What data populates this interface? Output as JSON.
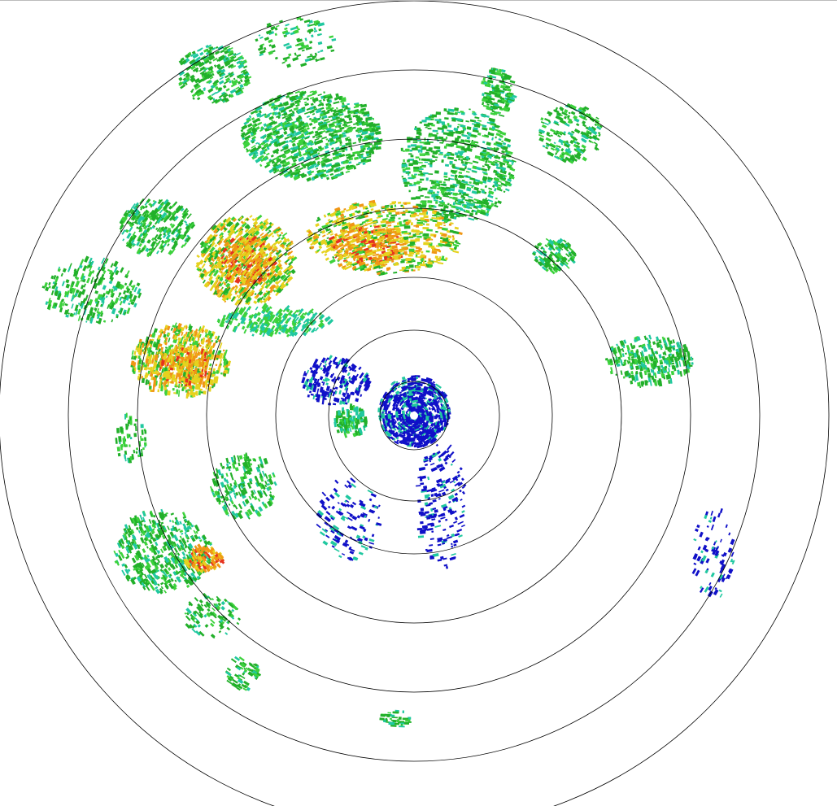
{
  "radar": {
    "range_ring_count": 7,
    "reflectivity_colors": {
      "weak": "#1010c8",
      "light": "#20c8a0",
      "moderate_green": "#22b02a",
      "bright_green": "#3cd23c",
      "yellow": "#e6d21e",
      "orange": "#f09614",
      "red": "#e6321e"
    },
    "ring_color": "#000000",
    "background": "#ffffff"
  }
}
